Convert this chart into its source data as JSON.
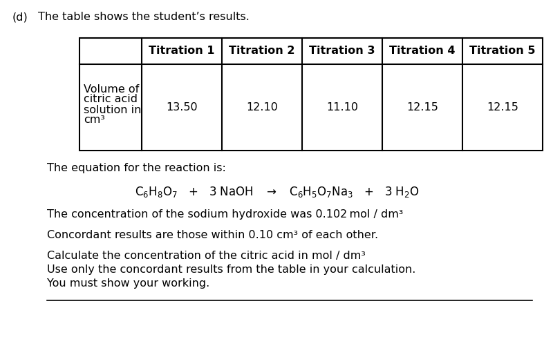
{
  "background_color": "#ffffff",
  "part_label": "(d)",
  "part_text": "The table shows the student’s results.",
  "col_headers": [
    "Titration 1",
    "Titration 2",
    "Titration 3",
    "Titration 4",
    "Titration 5"
  ],
  "row_label_lines": [
    "Volume of",
    "citric acid",
    "solution in",
    "cm³"
  ],
  "row_values": [
    "13.50",
    "12.10",
    "11.10",
    "12.15",
    "12.15"
  ],
  "equation_label": "The equation for the reaction is:",
  "info_line1": "The concentration of the sodium hydroxide was 0.102 mol / dm³",
  "info_line2": "Concordant results are those within 0.10 cm³ of each other.",
  "calc_line1": "Calculate the concentration of the citric acid in mol / dm³",
  "calc_line2": "Use only the concordant results from the table in your calculation.",
  "calc_line3": "You must show your working.",
  "font_size_body": 11.5,
  "font_size_header": 11.5,
  "font_size_part": 11.5
}
